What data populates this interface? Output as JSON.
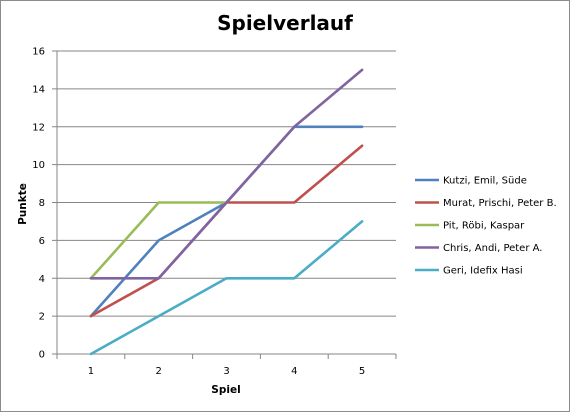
{
  "chart_data": {
    "type": "line",
    "title": "Spielverlauf",
    "xlabel": "Spiel",
    "ylabel": "Punkte",
    "categories": [
      "1",
      "2",
      "3",
      "4",
      "5"
    ],
    "yticks": [
      "0",
      "2",
      "4",
      "6",
      "8",
      "10",
      "12",
      "14",
      "16"
    ],
    "ylim": [
      0,
      16
    ],
    "grid": "horizontal",
    "legend_position": "right",
    "series": [
      {
        "name": "Kutzi, Emil, Süde",
        "color": "#4F81BD",
        "values": [
          2,
          6,
          8,
          12,
          12
        ]
      },
      {
        "name": "Murat, Prischi, Peter B.",
        "color": "#C0504D",
        "values": [
          2,
          4,
          8,
          8,
          11
        ]
      },
      {
        "name": "Pit, Röbi, Kaspar",
        "color": "#9BBB59",
        "values": [
          4,
          8,
          8,
          null,
          null
        ]
      },
      {
        "name": "Chris, Andi, Peter A.",
        "color": "#8064A2",
        "values": [
          4,
          4,
          8,
          12,
          15
        ]
      },
      {
        "name": "Geri, Idefix Hasi",
        "color": "#4BACC6",
        "values": [
          0,
          2,
          4,
          4,
          7
        ]
      }
    ]
  }
}
